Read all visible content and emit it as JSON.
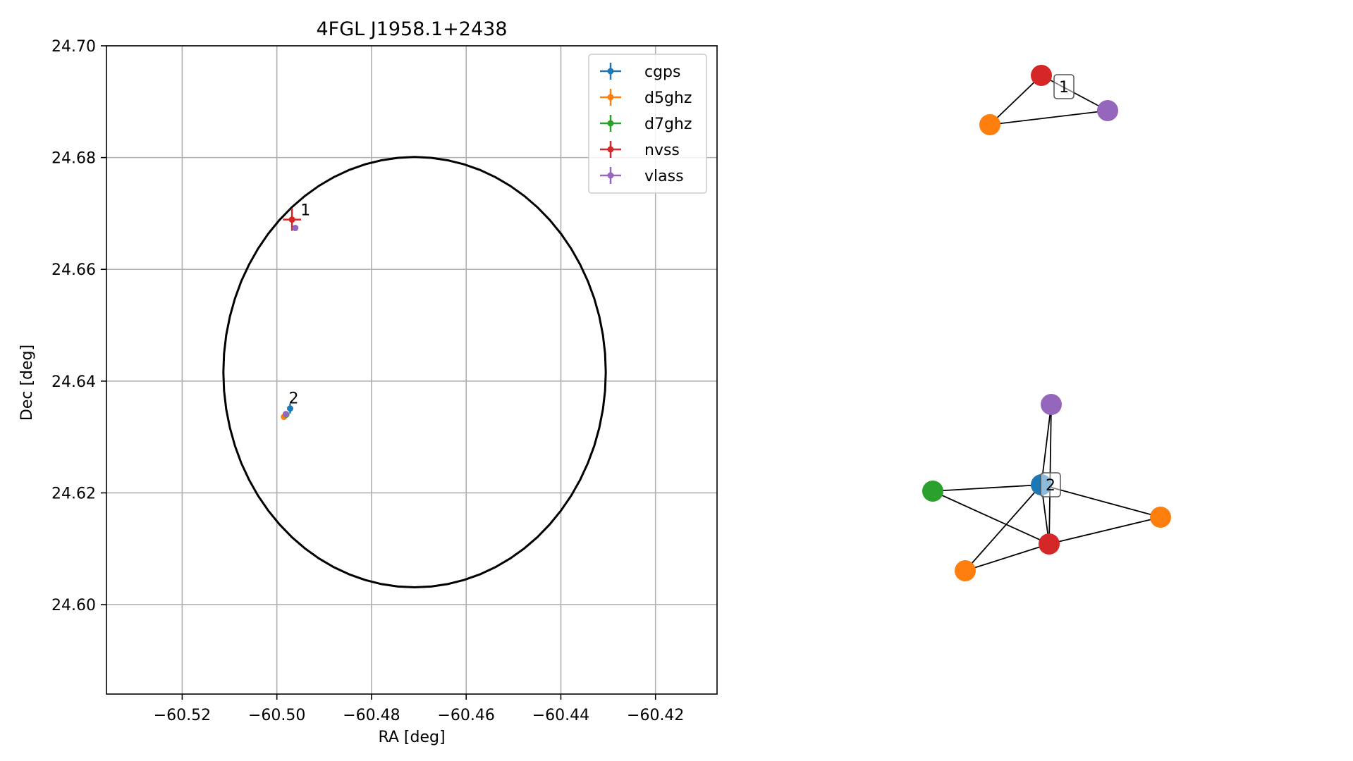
{
  "chart_data": [
    {
      "type": "scatter",
      "title": "4FGL J1958.1+2438",
      "xlabel": "RA [deg]",
      "ylabel": "Dec [deg]",
      "xlim": [
        -60.536,
        -60.407
      ],
      "ylim": [
        24.584,
        24.7
      ],
      "grid": true,
      "xticks": [
        -60.52,
        -60.5,
        -60.48,
        -60.46,
        -60.44,
        -60.42
      ],
      "xtick_labels": [
        "−60.52",
        "−60.50",
        "−60.48",
        "−60.46",
        "−60.44",
        "−60.42"
      ],
      "yticks": [
        24.6,
        24.62,
        24.64,
        24.66,
        24.68,
        24.7
      ],
      "ytick_labels": [
        "24.60",
        "24.62",
        "24.64",
        "24.66",
        "24.68",
        "24.70"
      ],
      "legend_position": "top-right",
      "ellipse": {
        "center_ra": -60.4709,
        "center_dec": 24.6416,
        "semi_ra": 0.0404,
        "semi_dec": 0.0385,
        "color": "#000000"
      },
      "series": [
        {
          "name": "cgps",
          "color": "#1f77b4",
          "points": [
            {
              "ra": -60.4972,
              "dec": 24.6351,
              "err_ra": 0.0003,
              "err_dec": 0.0009
            }
          ]
        },
        {
          "name": "d5ghz",
          "color": "#ff7f0e",
          "points": [
            {
              "ra": -60.4985,
              "dec": 24.6336,
              "err_ra": 0.0002,
              "err_dec": 0.0002
            }
          ]
        },
        {
          "name": "d7ghz",
          "color": "#2ca02c",
          "points": [
            {
              "ra": -60.498,
              "dec": 24.634,
              "err_ra": 0.0002,
              "err_dec": 0.0002
            }
          ]
        },
        {
          "name": "nvss",
          "color": "#d62728",
          "points": [
            {
              "ra": -60.4968,
              "dec": 24.6689,
              "err_ra": 0.0019,
              "err_dec": 0.002
            }
          ]
        },
        {
          "name": "vlass",
          "color": "#9467bd",
          "points": [
            {
              "ra": -60.4961,
              "dec": 24.6674,
              "err_ra": 0.0001,
              "err_dec": 0.0001
            },
            {
              "ra": -60.4981,
              "dec": 24.6341,
              "err_ra": 0.0001,
              "err_dec": 0.0001
            }
          ]
        }
      ],
      "annotations": [
        {
          "text": "1",
          "ra": -60.495,
          "dec": 24.6697
        },
        {
          "text": "2",
          "ra": -60.4975,
          "dec": 24.636
        }
      ]
    },
    {
      "type": "network",
      "groups": [
        {
          "label": "1",
          "nodes": [
            {
              "id": "a",
              "color": "#d62728"
            },
            {
              "id": "b",
              "color": "#ff7f0e"
            },
            {
              "id": "c",
              "color": "#9467bd"
            }
          ],
          "edges": [
            [
              "a",
              "b"
            ],
            [
              "b",
              "c"
            ],
            [
              "a",
              "c"
            ]
          ]
        },
        {
          "label": "2",
          "nodes": [
            {
              "id": "p",
              "color": "#9467bd"
            },
            {
              "id": "q",
              "color": "#1f77b4"
            },
            {
              "id": "r",
              "color": "#2ca02c"
            },
            {
              "id": "s",
              "color": "#ff7f0e"
            },
            {
              "id": "t",
              "color": "#d62728"
            },
            {
              "id": "u",
              "color": "#ff7f0e"
            }
          ],
          "edges": [
            [
              "p",
              "q"
            ],
            [
              "p",
              "t"
            ],
            [
              "q",
              "r"
            ],
            [
              "q",
              "s"
            ],
            [
              "q",
              "t"
            ],
            [
              "q",
              "u"
            ],
            [
              "r",
              "t"
            ],
            [
              "s",
              "t"
            ],
            [
              "u",
              "t"
            ]
          ]
        }
      ]
    }
  ]
}
